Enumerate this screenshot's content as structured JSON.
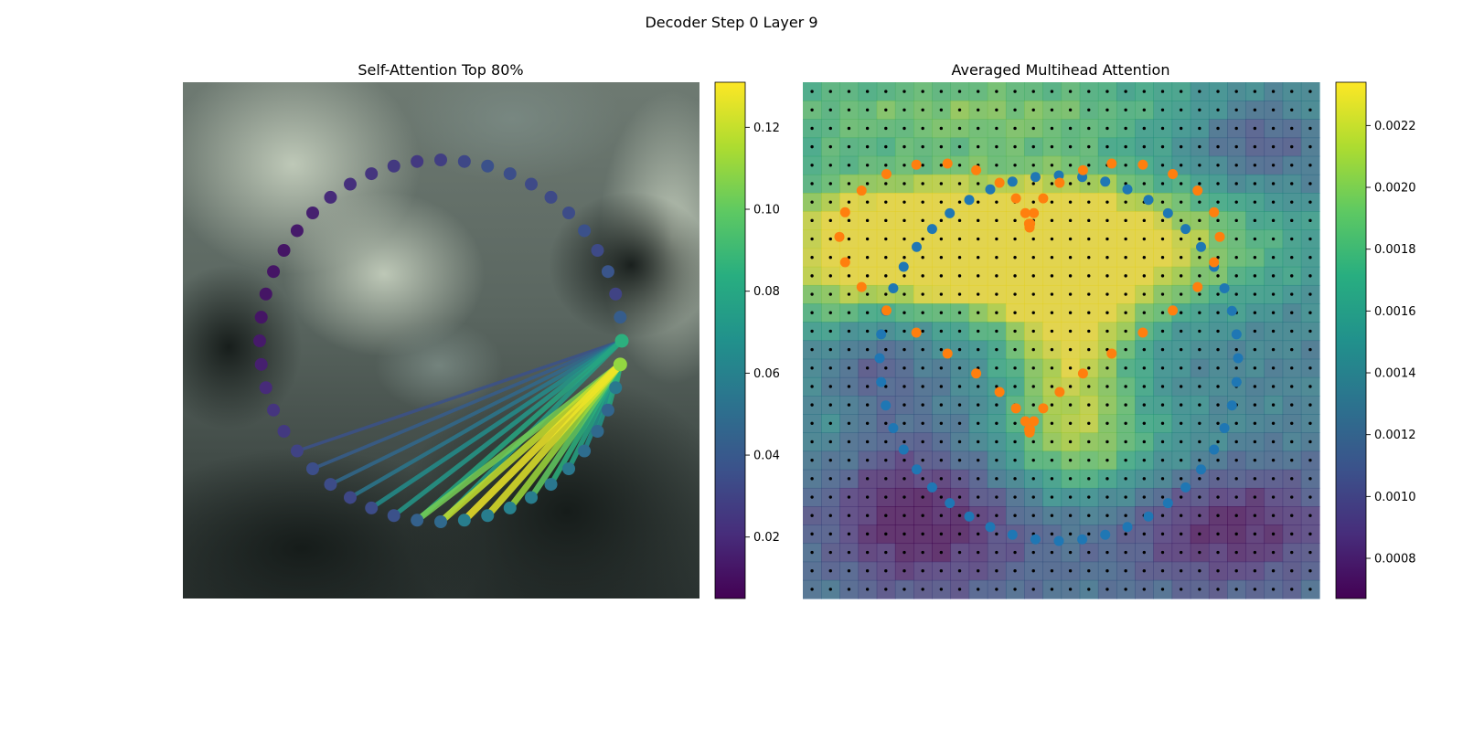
{
  "suptitle": "Decoder Step 0 Layer 9",
  "chart_data": [
    {
      "type": "scatter",
      "title": "Self-Attention Top 80%",
      "colormap": "viridis",
      "colorbar": {
        "min": 0.005,
        "max": 0.131,
        "ticks": [
          "0.02",
          "0.04",
          "0.06",
          "0.08",
          "0.10",
          "0.12"
        ],
        "tick_values": [
          0.02,
          0.04,
          0.06,
          0.08,
          0.1,
          0.12
        ]
      },
      "ring": {
        "num_points": 48,
        "point_attention": [
          0.028,
          0.032,
          0.036,
          0.035,
          0.033,
          0.033,
          0.034,
          0.036,
          0.033,
          0.038,
          0.03,
          0.042,
          0.085,
          0.11,
          0.056,
          0.046,
          0.048,
          0.05,
          0.055,
          0.055,
          0.058,
          0.06,
          0.058,
          0.058,
          0.048,
          0.044,
          0.036,
          0.034,
          0.032,
          0.034,
          0.035,
          0.03,
          0.026,
          0.024,
          0.02,
          0.016,
          0.014,
          0.012,
          0.012,
          0.012,
          0.012,
          0.014,
          0.016,
          0.02,
          0.022,
          0.024,
          0.026,
          0.026
        ]
      },
      "edges": [
        {
          "from": 12,
          "to": 24,
          "attention": 0.075
        },
        {
          "from": 12,
          "to": 25,
          "attention": 0.08
        },
        {
          "from": 12,
          "to": 26,
          "attention": 0.072
        },
        {
          "from": 12,
          "to": 27,
          "attention": 0.066
        },
        {
          "from": 12,
          "to": 28,
          "attention": 0.055
        },
        {
          "from": 12,
          "to": 29,
          "attention": 0.048
        },
        {
          "from": 12,
          "to": 30,
          "attention": 0.042
        },
        {
          "from": 12,
          "to": 31,
          "attention": 0.036
        },
        {
          "from": 13,
          "to": 14,
          "attention": 0.085
        },
        {
          "from": 13,
          "to": 15,
          "attention": 0.08
        },
        {
          "from": 13,
          "to": 16,
          "attention": 0.07
        },
        {
          "from": 13,
          "to": 17,
          "attention": 0.068
        },
        {
          "from": 13,
          "to": 18,
          "attention": 0.078
        },
        {
          "from": 13,
          "to": 19,
          "attention": 0.085
        },
        {
          "from": 13,
          "to": 20,
          "attention": 0.1
        },
        {
          "from": 13,
          "to": 21,
          "attention": 0.112
        },
        {
          "from": 13,
          "to": 22,
          "attention": 0.125
        },
        {
          "from": 13,
          "to": 23,
          "attention": 0.128
        },
        {
          "from": 13,
          "to": 24,
          "attention": 0.12
        },
        {
          "from": 13,
          "to": 25,
          "attention": 0.104
        }
      ]
    },
    {
      "type": "heatmap",
      "title": "Averaged Multihead Attention",
      "colormap": "viridis",
      "colorbar": {
        "min": 0.00067,
        "max": 0.00234,
        "ticks": [
          "0.0008",
          "0.0010",
          "0.0012",
          "0.0014",
          "0.0016",
          "0.0018",
          "0.0020",
          "0.0022"
        ],
        "tick_values": [
          0.0008,
          0.001,
          0.0012,
          0.0014,
          0.0016,
          0.0018,
          0.002,
          0.0022
        ]
      },
      "grid": {
        "rows": 28,
        "cols": 28
      },
      "series": [
        {
          "color": "#1f77b4",
          "num_points": 48
        },
        {
          "color": "#ff7f0e",
          "num_points": 44
        }
      ]
    }
  ]
}
